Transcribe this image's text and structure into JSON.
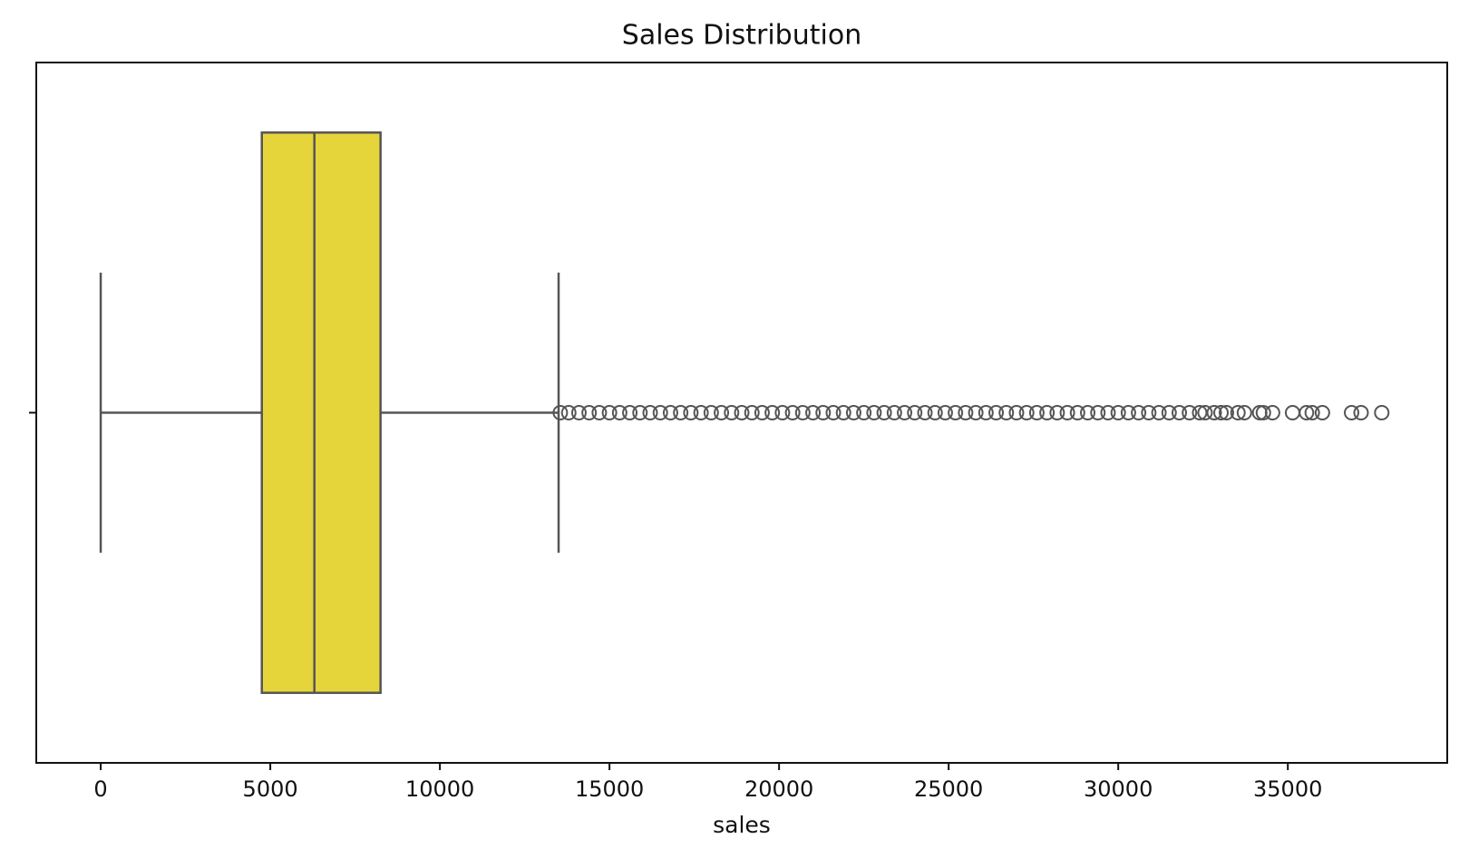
{
  "chart_data": {
    "type": "box",
    "orientation": "horizontal",
    "title": "Sales Distribution",
    "xlabel": "sales",
    "xlim": [
      -1900,
      39700
    ],
    "xticks": [
      0,
      5000,
      10000,
      15000,
      20000,
      25000,
      30000,
      35000
    ],
    "whislo": 0,
    "q1": 4750,
    "median": 6300,
    "q3": 8250,
    "whishi": 13500,
    "fliers": [
      13550,
      13800,
      14100,
      14400,
      14700,
      15000,
      15300,
      15600,
      15900,
      16200,
      16500,
      16800,
      17100,
      17400,
      17700,
      18000,
      18300,
      18600,
      18900,
      19200,
      19500,
      19800,
      20100,
      20400,
      20700,
      21000,
      21300,
      21600,
      21900,
      22200,
      22500,
      22800,
      23100,
      23400,
      23700,
      24000,
      24300,
      24600,
      24900,
      25200,
      25500,
      25800,
      26100,
      26400,
      26700,
      27000,
      27300,
      27600,
      27900,
      28200,
      28500,
      28800,
      29100,
      29400,
      29700,
      30000,
      30300,
      30600,
      30900,
      31200,
      31500,
      31800,
      32100,
      32400,
      32560,
      32830,
      33030,
      33190,
      33530,
      33720,
      34170,
      34280,
      34550,
      35140,
      35550,
      35720,
      36020,
      36880,
      37160,
      37770
    ],
    "color": "#e6d43b",
    "line_color": "#555555"
  }
}
